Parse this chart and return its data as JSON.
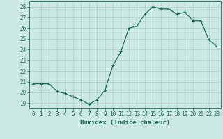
{
  "x": [
    0,
    1,
    2,
    3,
    4,
    5,
    6,
    7,
    8,
    9,
    10,
    11,
    12,
    13,
    14,
    15,
    16,
    17,
    18,
    19,
    20,
    21,
    22,
    23
  ],
  "y": [
    20.8,
    20.8,
    20.8,
    20.1,
    19.9,
    19.6,
    19.3,
    18.9,
    19.3,
    20.2,
    22.5,
    23.8,
    26.0,
    26.2,
    27.3,
    28.0,
    27.8,
    27.8,
    27.3,
    27.5,
    26.7,
    26.7,
    24.9,
    24.3
  ],
  "line_color": "#1a6b5a",
  "marker": "+",
  "marker_color": "#1a6b5a",
  "bg_color": "#cce8e4",
  "grid_color": "#aacfca",
  "tick_color": "#1a6b5a",
  "xlabel": "Humidex (Indice chaleur)",
  "ylim": [
    18.5,
    28.5
  ],
  "xlim": [
    -0.5,
    23.5
  ],
  "yticks": [
    19,
    20,
    21,
    22,
    23,
    24,
    25,
    26,
    27,
    28
  ],
  "xticks": [
    0,
    1,
    2,
    3,
    4,
    5,
    6,
    7,
    8,
    9,
    10,
    11,
    12,
    13,
    14,
    15,
    16,
    17,
    18,
    19,
    20,
    21,
    22,
    23
  ],
  "xlabel_fontsize": 6.5,
  "tick_fontsize": 5.5,
  "linewidth": 0.9,
  "markersize": 2.5
}
